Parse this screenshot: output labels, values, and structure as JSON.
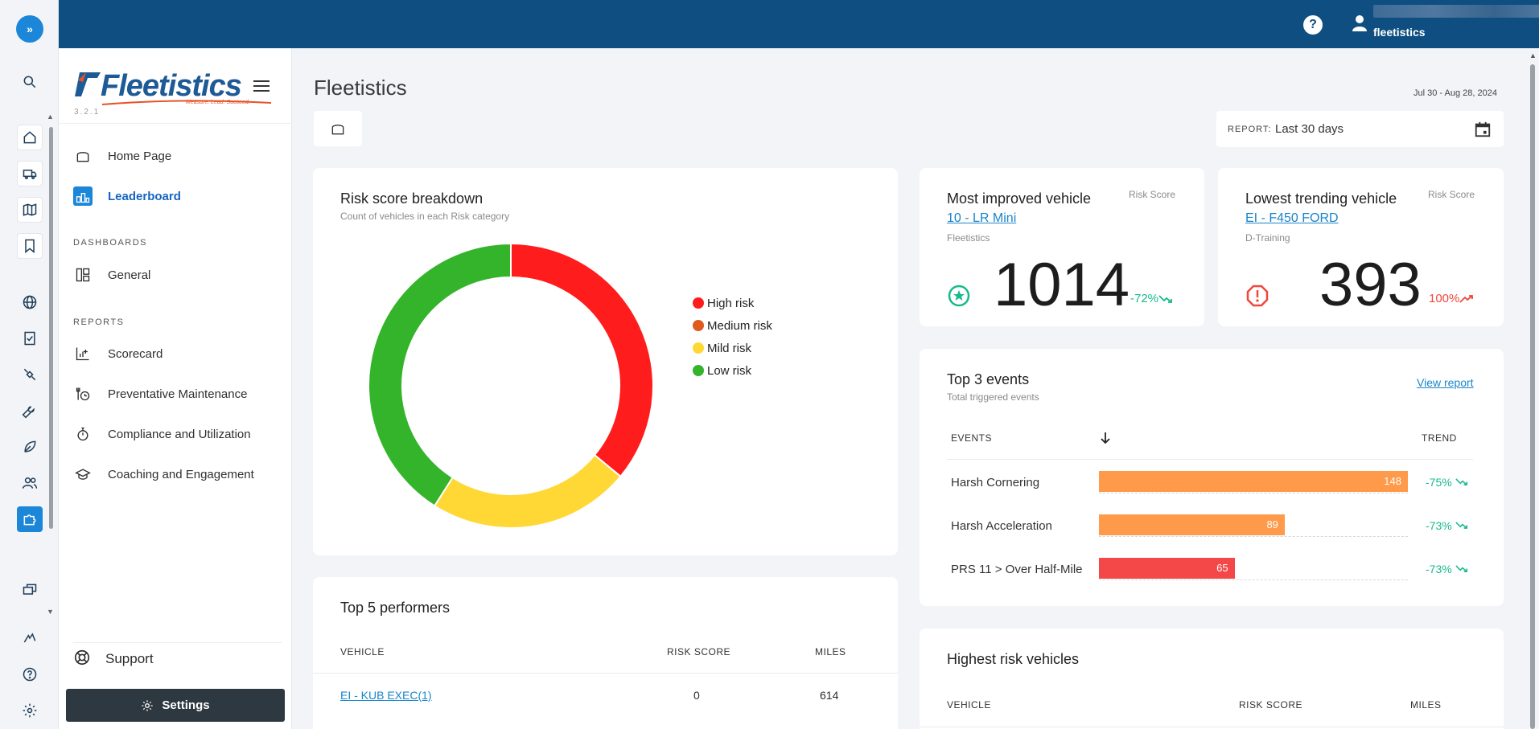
{
  "topbar": {
    "help": "?",
    "user_name": "fleetistics",
    "caret": "▾"
  },
  "rail": {
    "expand": "»",
    "icons": [
      "search-icon",
      "home-icon",
      "truck-icon",
      "map-icon",
      "bookmark-icon",
      "globe-icon",
      "checklist-icon",
      "satellite-icon",
      "wrench-icon",
      "leaf-icon",
      "users-icon",
      "puzzle-icon",
      "chat-icon",
      "logo-mark-icon",
      "help-circle-icon",
      "gear-icon"
    ]
  },
  "nav": {
    "logo_text": "Fleetistics",
    "logo_tagline": "Measure. Lead. Succeed.",
    "version": "3.2.1",
    "items": {
      "home": "Home Page",
      "leaderboard": "Leaderboard",
      "dashboards_section": "DASHBOARDS",
      "general": "General",
      "reports_section": "REPORTS",
      "scorecard": "Scorecard",
      "maintenance": "Preventative Maintenance",
      "compliance": "Compliance and Utilization",
      "coaching": "Coaching and Engagement"
    },
    "support": "Support",
    "settings": "Settings"
  },
  "header": {
    "title": "Fleetistics",
    "date_range": "Jul 30 - Aug 28, 2024",
    "report_label": "REPORT:",
    "report_value": "Last 30 days"
  },
  "risk_breakdown": {
    "title": "Risk score breakdown",
    "subtitle": "Count of vehicles in each Risk category",
    "chart_data": {
      "type": "pie",
      "donut": true,
      "categories": [
        "High risk",
        "Medium risk",
        "Mild risk",
        "Low risk"
      ],
      "values": [
        36,
        0,
        23,
        41
      ],
      "colors": [
        "#ff1c1c",
        "#e05a1e",
        "#ffd836",
        "#34b42a"
      ],
      "legend": "right"
    }
  },
  "most_improved": {
    "title": "Most improved vehicle",
    "metric_label": "Risk Score",
    "vehicle": "10 - LR Mini",
    "group": "Fleetistics",
    "score": "1014",
    "change": "-72%",
    "color": "#18b98d"
  },
  "lowest_trending": {
    "title": "Lowest trending vehicle",
    "metric_label": "Risk Score",
    "vehicle": "EI - F450 FORD",
    "group": "D-Training",
    "score": "393",
    "change": "100%",
    "color": "#f0463c"
  },
  "top_events": {
    "title": "Top 3 events",
    "subtitle": "Total triggered events",
    "view_report": "View report",
    "col_events": "EVENTS",
    "col_trend": "TREND",
    "rows": [
      {
        "name": "Harsh Cornering",
        "value": 148,
        "trend": "-75%",
        "color": "#ff9a4a"
      },
      {
        "name": "Harsh Acceleration",
        "value": 89,
        "trend": "-73%",
        "color": "#ff9a4a"
      },
      {
        "name": "PRS 11 > Over Half-Mile",
        "value": 65,
        "trend": "-73%",
        "color": "#f44747"
      }
    ],
    "max": 148
  },
  "top_performers": {
    "title": "Top 5 performers",
    "col_vehicle": "VEHICLE",
    "col_risk": "RISK SCORE",
    "col_miles": "MILES",
    "rows": [
      {
        "vehicle": "EI - KUB EXEC(1)",
        "risk": "0",
        "miles": "614"
      }
    ]
  },
  "highest_risk": {
    "title": "Highest risk vehicles",
    "col_vehicle": "VEHICLE",
    "col_risk": "RISK SCORE",
    "col_miles": "MILES"
  }
}
